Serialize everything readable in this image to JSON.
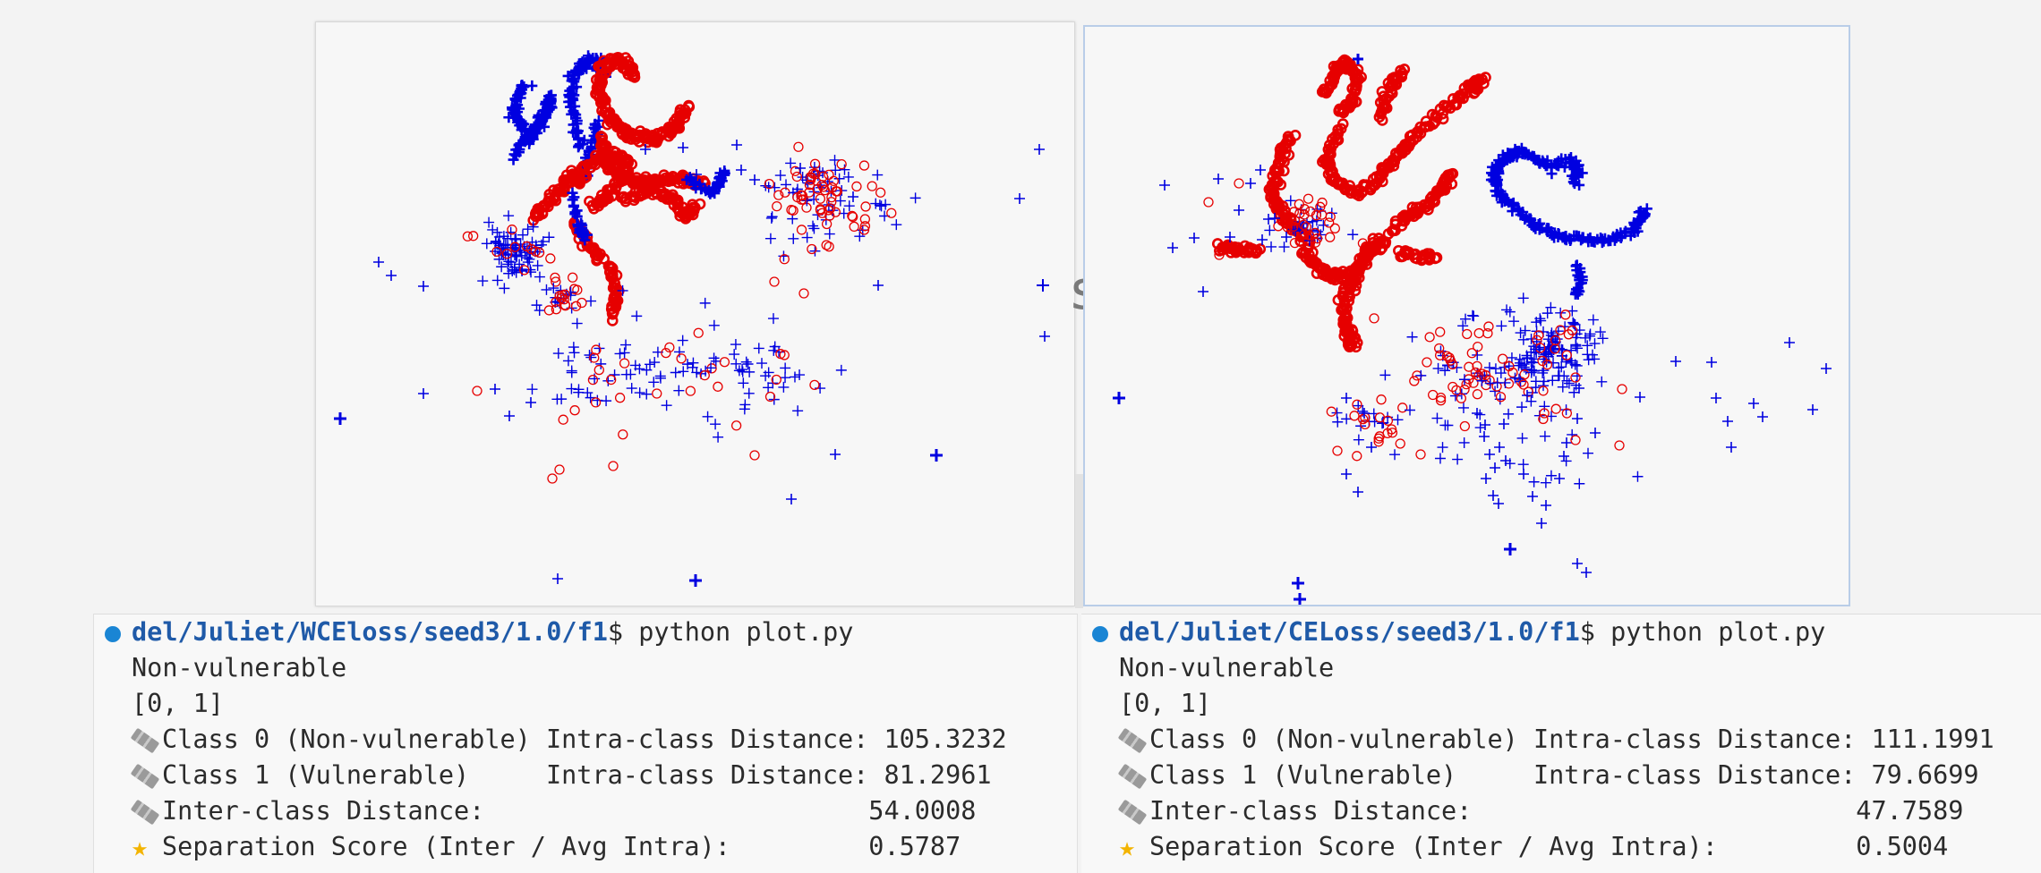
{
  "colors": {
    "class0": "#0000e0",
    "class1": "#e60000",
    "prompt_dot": "#1a85d4",
    "prompt_path": "#1f5aa8",
    "star": "#f3b400"
  },
  "plots": [
    {
      "id": "left",
      "chart_data": {
        "type": "scatter",
        "title": "",
        "xlabel": "",
        "ylabel": "",
        "series": [
          {
            "marker": "plus",
            "color": "#0000e0"
          },
          {
            "marker": "circle",
            "color": "#e60000"
          }
        ]
      }
    },
    {
      "id": "right",
      "chart_data": {
        "type": "scatter",
        "title": "",
        "xlabel": "",
        "ylabel": "",
        "series": [
          {
            "marker": "plus",
            "color": "#0000e0"
          },
          {
            "marker": "circle",
            "color": "#e60000"
          }
        ]
      }
    }
  ],
  "terminals": [
    {
      "id": "left",
      "path": "del/Juliet/WCEloss/seed3/1.0/f1",
      "command": "$ python plot.py",
      "label_line": "Non-vulnerable",
      "list_line": "[0, 1]",
      "class0": "Class 0 (Non-vulnerable) Intra-class Distance: 105.3232",
      "class1": "Class 1 (Vulnerable)     Intra-class Distance: 81.2961",
      "inter": "Inter-class Distance:                         54.0008",
      "score": "Separation Score (Inter / Avg Intra):         0.5787"
    },
    {
      "id": "right",
      "path": "del/Juliet/CELoss/seed3/1.0/f1",
      "command": "$ python plot.py",
      "label_line": "Non-vulnerable",
      "list_line": "[0, 1]",
      "class0": "Class 0 (Non-vulnerable) Intra-class Distance: 111.1991",
      "class1": "Class 1 (Vulnerable)     Intra-class Distance: 79.6699",
      "inter": "Inter-class Distance:                         47.7589",
      "score": "Separation Score (Inter / Avg Intra):         0.5004"
    }
  ],
  "icons": {
    "ruler": "straight-ruler-icon",
    "star": "star-icon",
    "dot": "terminal-status-dot-icon"
  }
}
